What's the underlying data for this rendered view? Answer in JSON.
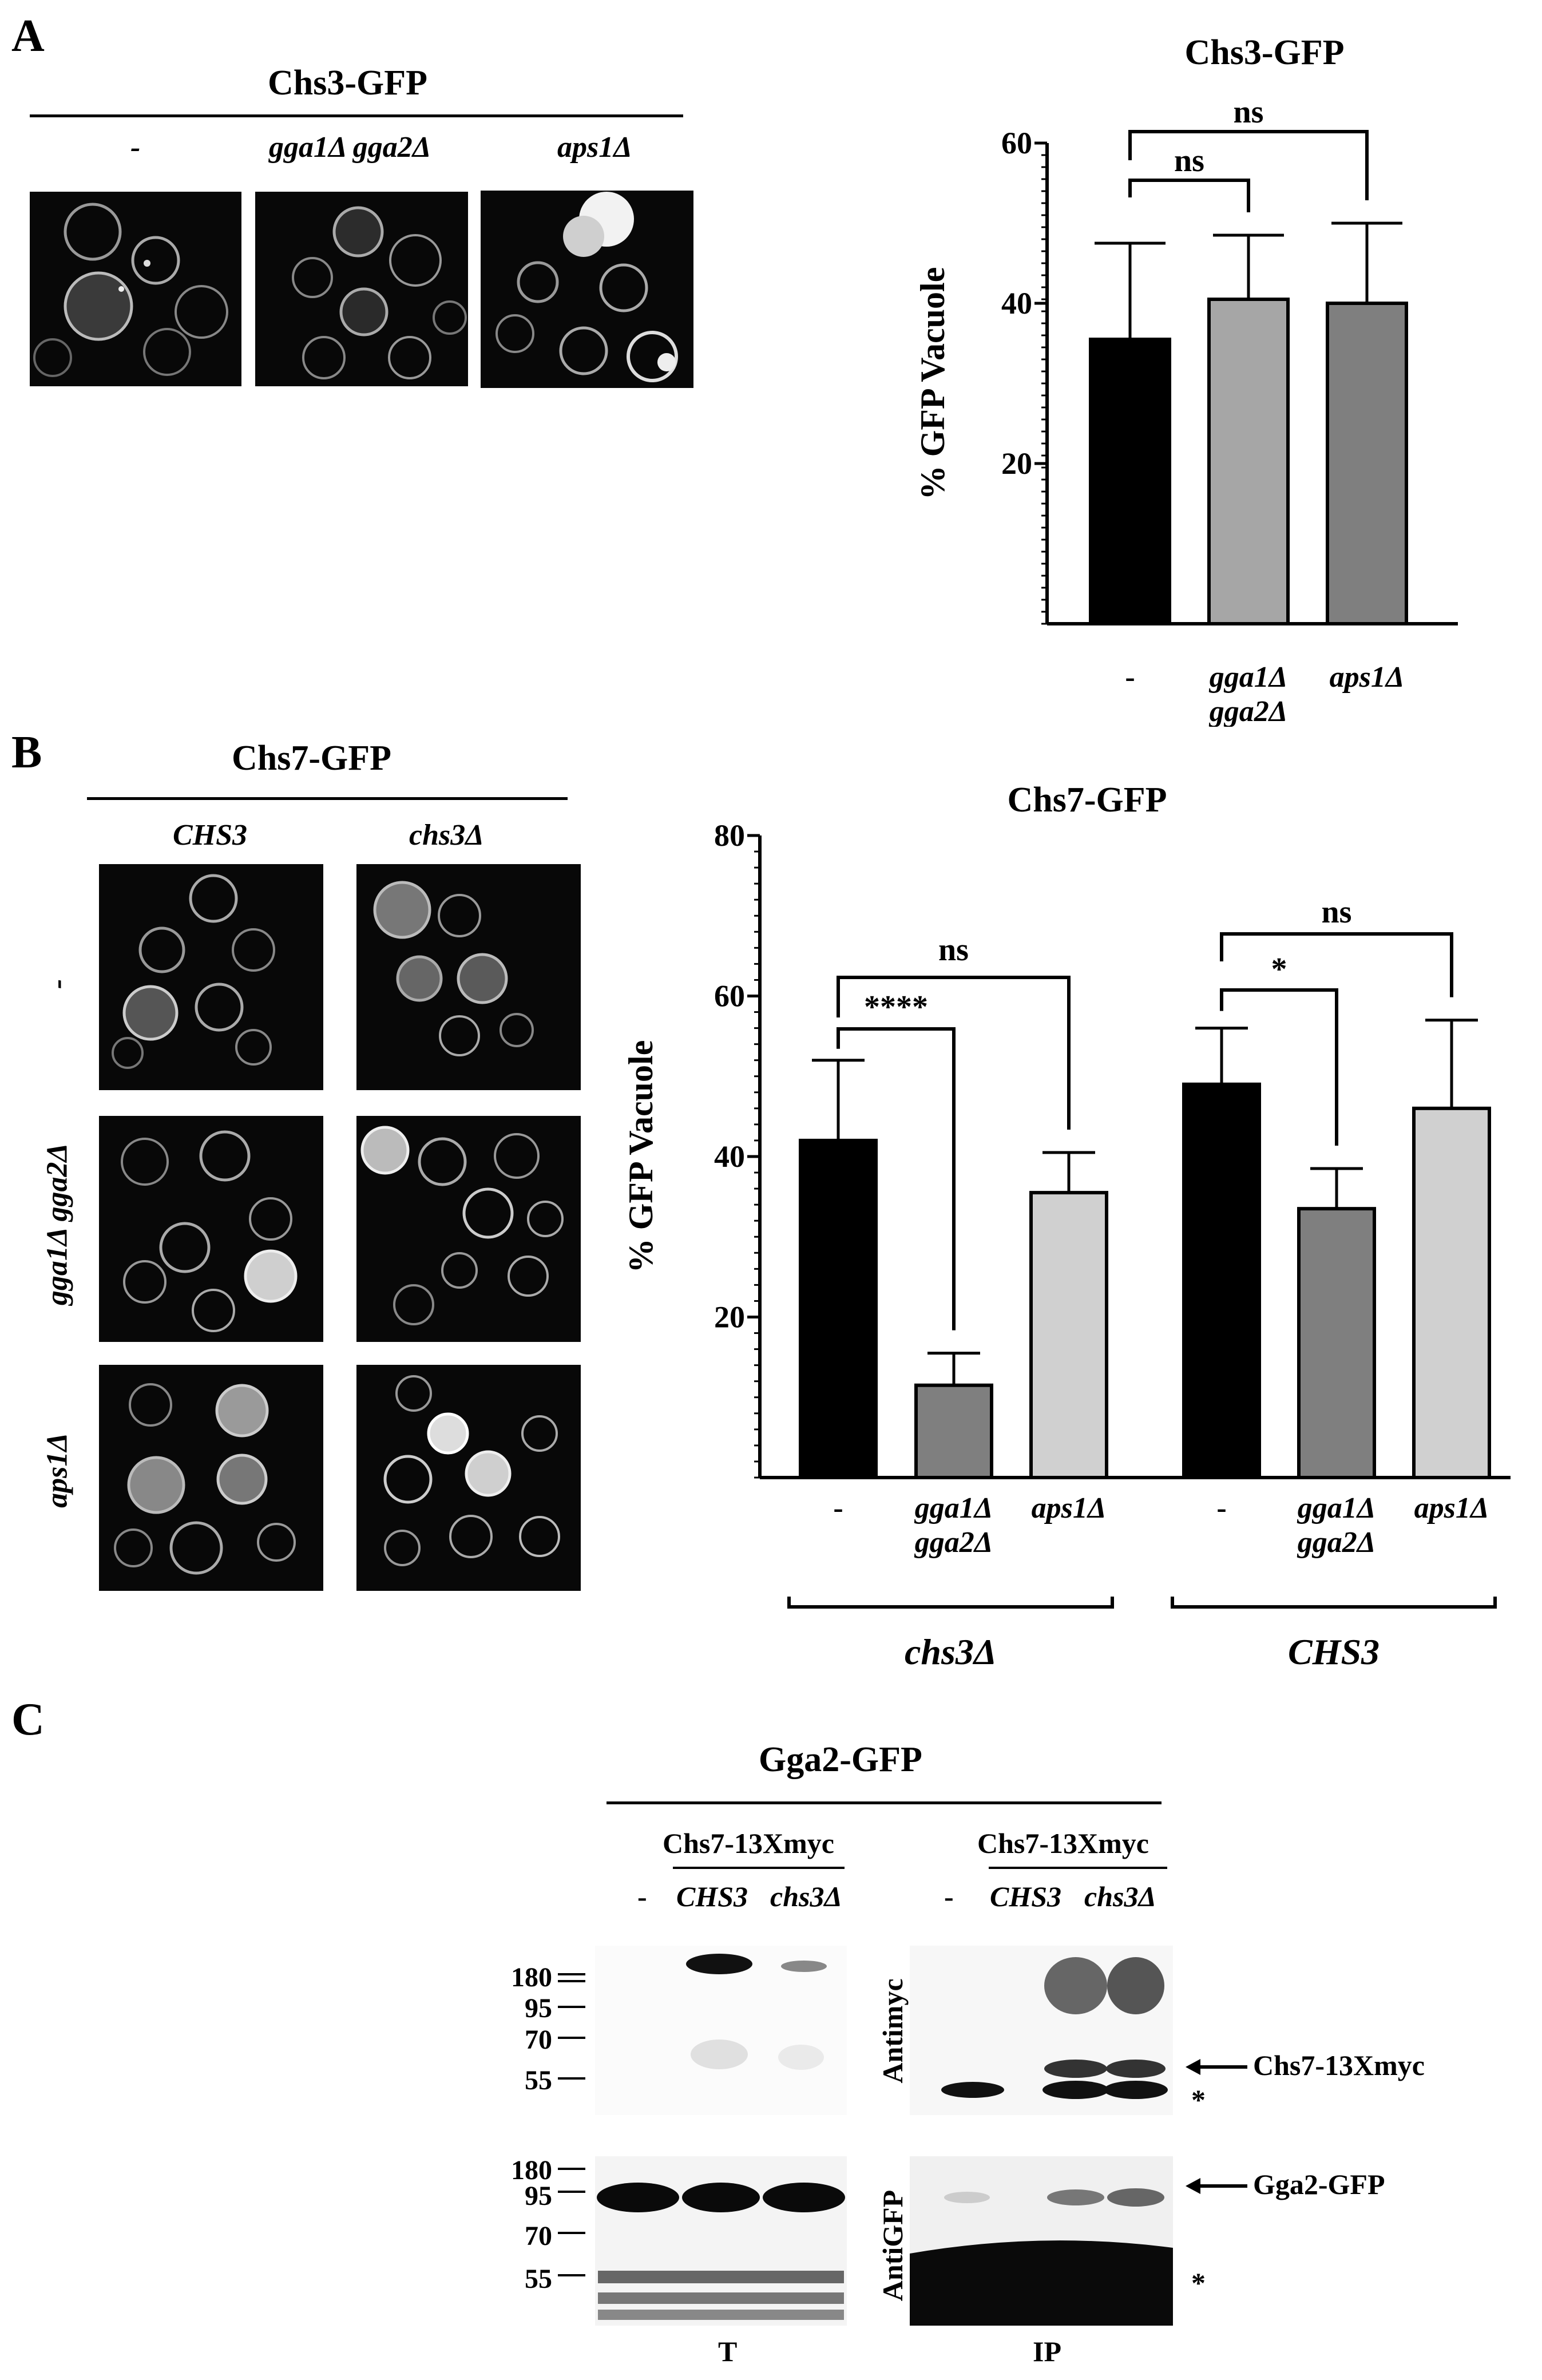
{
  "panelA": {
    "letter": "A",
    "micro_title": "Chs3-GFP",
    "micro_columns": [
      "-",
      "gga1Δ gga2Δ",
      "aps1Δ"
    ],
    "chart_data": {
      "type": "bar",
      "title": "Chs3-GFP",
      "ylabel": "% GFP Vacuole",
      "xlabel": "",
      "ylim": [
        0,
        60
      ],
      "yticks": [
        20,
        40,
        60
      ],
      "categories": [
        "-",
        "gga1Δ\ngga2Δ",
        "aps1Δ"
      ],
      "values": [
        35.5,
        40.5,
        40
      ],
      "errors": [
        12,
        8,
        10
      ],
      "colors": [
        "#000000",
        "#a6a6a6",
        "#7f7f7f"
      ],
      "significance": [
        {
          "from": 0,
          "to": 1,
          "label": "ns"
        },
        {
          "from": 0,
          "to": 2,
          "label": "ns"
        }
      ]
    }
  },
  "panelB": {
    "letter": "B",
    "micro_title": "Chs7-GFP",
    "micro_columns": [
      "CHS3",
      "chs3Δ"
    ],
    "micro_rows": [
      "-",
      "gga1Δ gga2Δ",
      "aps1Δ"
    ],
    "chart_data": {
      "type": "bar",
      "title": "Chs7-GFP",
      "ylabel": "% GFP Vacuole",
      "xlabel": "",
      "ylim": [
        0,
        80
      ],
      "yticks": [
        20,
        40,
        60,
        80
      ],
      "categories": [
        "-",
        "gga1Δ\ngga2Δ",
        "aps1Δ",
        "-",
        "gga1Δ\ngga2Δ",
        "aps1Δ"
      ],
      "values": [
        42,
        11.5,
        35.5,
        49,
        33.5,
        46
      ],
      "errors": [
        10,
        4,
        5,
        7,
        5,
        11
      ],
      "colors": [
        "#000000",
        "#7f7f7f",
        "#d0d0d0",
        "#000000",
        "#7f7f7f",
        "#d0d0d0"
      ],
      "groups": [
        {
          "label": "chs3Δ",
          "indices": [
            0,
            1,
            2
          ]
        },
        {
          "label": "CHS3",
          "indices": [
            3,
            4,
            5
          ]
        }
      ],
      "significance": [
        {
          "from": 0,
          "to": 1,
          "label": "****"
        },
        {
          "from": 0,
          "to": 2,
          "label": "ns"
        },
        {
          "from": 3,
          "to": 4,
          "label": "*"
        },
        {
          "from": 3,
          "to": 5,
          "label": "ns"
        }
      ]
    }
  },
  "panelC": {
    "letter": "C",
    "title": "Gga2-GFP",
    "construct": "Chs7-13Xmyc",
    "lanes": [
      "-",
      "CHS3",
      "chs3Δ"
    ],
    "blot_top_antibody": "Antimyc",
    "blot_bottom_antibody": "AntiGFP",
    "mw_top": [
      "180",
      "95",
      "70",
      "55"
    ],
    "mw_bottom": [
      "180",
      "95",
      "70",
      "55"
    ],
    "arrow_top": "Chs7-13Xmyc",
    "arrow_bottom": "Gga2-GFP",
    "asterisk": "*",
    "fraction_T": "T",
    "fraction_IP": "IP"
  }
}
